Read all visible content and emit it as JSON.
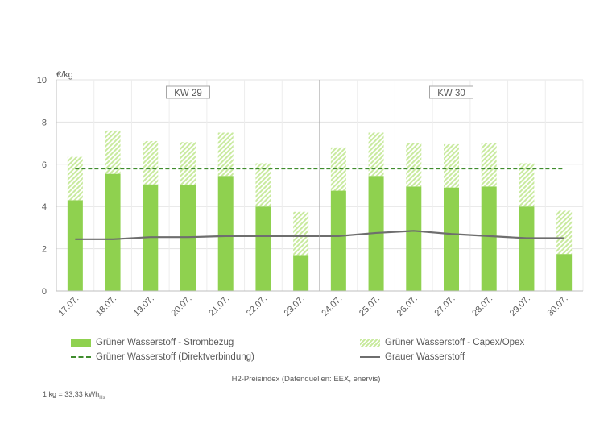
{
  "chart_data": {
    "type": "bar",
    "ylabel": "€/kg",
    "ylim": [
      0,
      10
    ],
    "yticks": [
      0,
      2,
      4,
      6,
      8,
      10
    ],
    "categories": [
      "17.07.",
      "18.07.",
      "19.07.",
      "20.07.",
      "21.07.",
      "22.07.",
      "23.07.",
      "24.07.",
      "25.07.",
      "26.07.",
      "27.07.",
      "28.07.",
      "29.07.",
      "30.07."
    ],
    "week_groups": [
      {
        "label": "KW 29",
        "first": 0,
        "last": 6
      },
      {
        "label": "KW 30",
        "first": 7,
        "last": 13
      }
    ],
    "series": [
      {
        "name": "Grüner Wasserstoff - Strombezug",
        "kind": "bar-stack",
        "color": "#8fd14f",
        "values": [
          4.3,
          5.55,
          5.05,
          5.0,
          5.45,
          4.0,
          1.7,
          4.75,
          5.45,
          4.95,
          4.9,
          4.95,
          4.0,
          1.75
        ]
      },
      {
        "name": "Grüner Wasserstoff - Capex/Opex",
        "kind": "bar-stack-hatched",
        "color": "#c9ea9f",
        "values": [
          2.05,
          2.05,
          2.05,
          2.05,
          2.05,
          2.05,
          2.05,
          2.05,
          2.05,
          2.05,
          2.05,
          2.05,
          2.05,
          2.05
        ]
      },
      {
        "name": "Grüner Wasserstoff (Direktverbindung)",
        "kind": "line-dashed",
        "color": "#3f8c2d",
        "values": [
          5.8,
          5.8,
          5.8,
          5.8,
          5.8,
          5.8,
          5.8,
          5.8,
          5.8,
          5.8,
          5.8,
          5.8,
          5.8,
          5.8
        ]
      },
      {
        "name": "Grauer Wasserstoff",
        "kind": "line",
        "color": "#6e6e6e",
        "values": [
          2.45,
          2.45,
          2.55,
          2.55,
          2.6,
          2.6,
          2.6,
          2.6,
          2.75,
          2.85,
          2.7,
          2.6,
          2.5,
          2.5
        ]
      }
    ],
    "source_note": "H2-Preisindex (Datenquellen: EEX, enervis)",
    "footnote_main": "1 kg = 33,33 kWh",
    "footnote_sub": "Hs",
    "grid": true
  }
}
